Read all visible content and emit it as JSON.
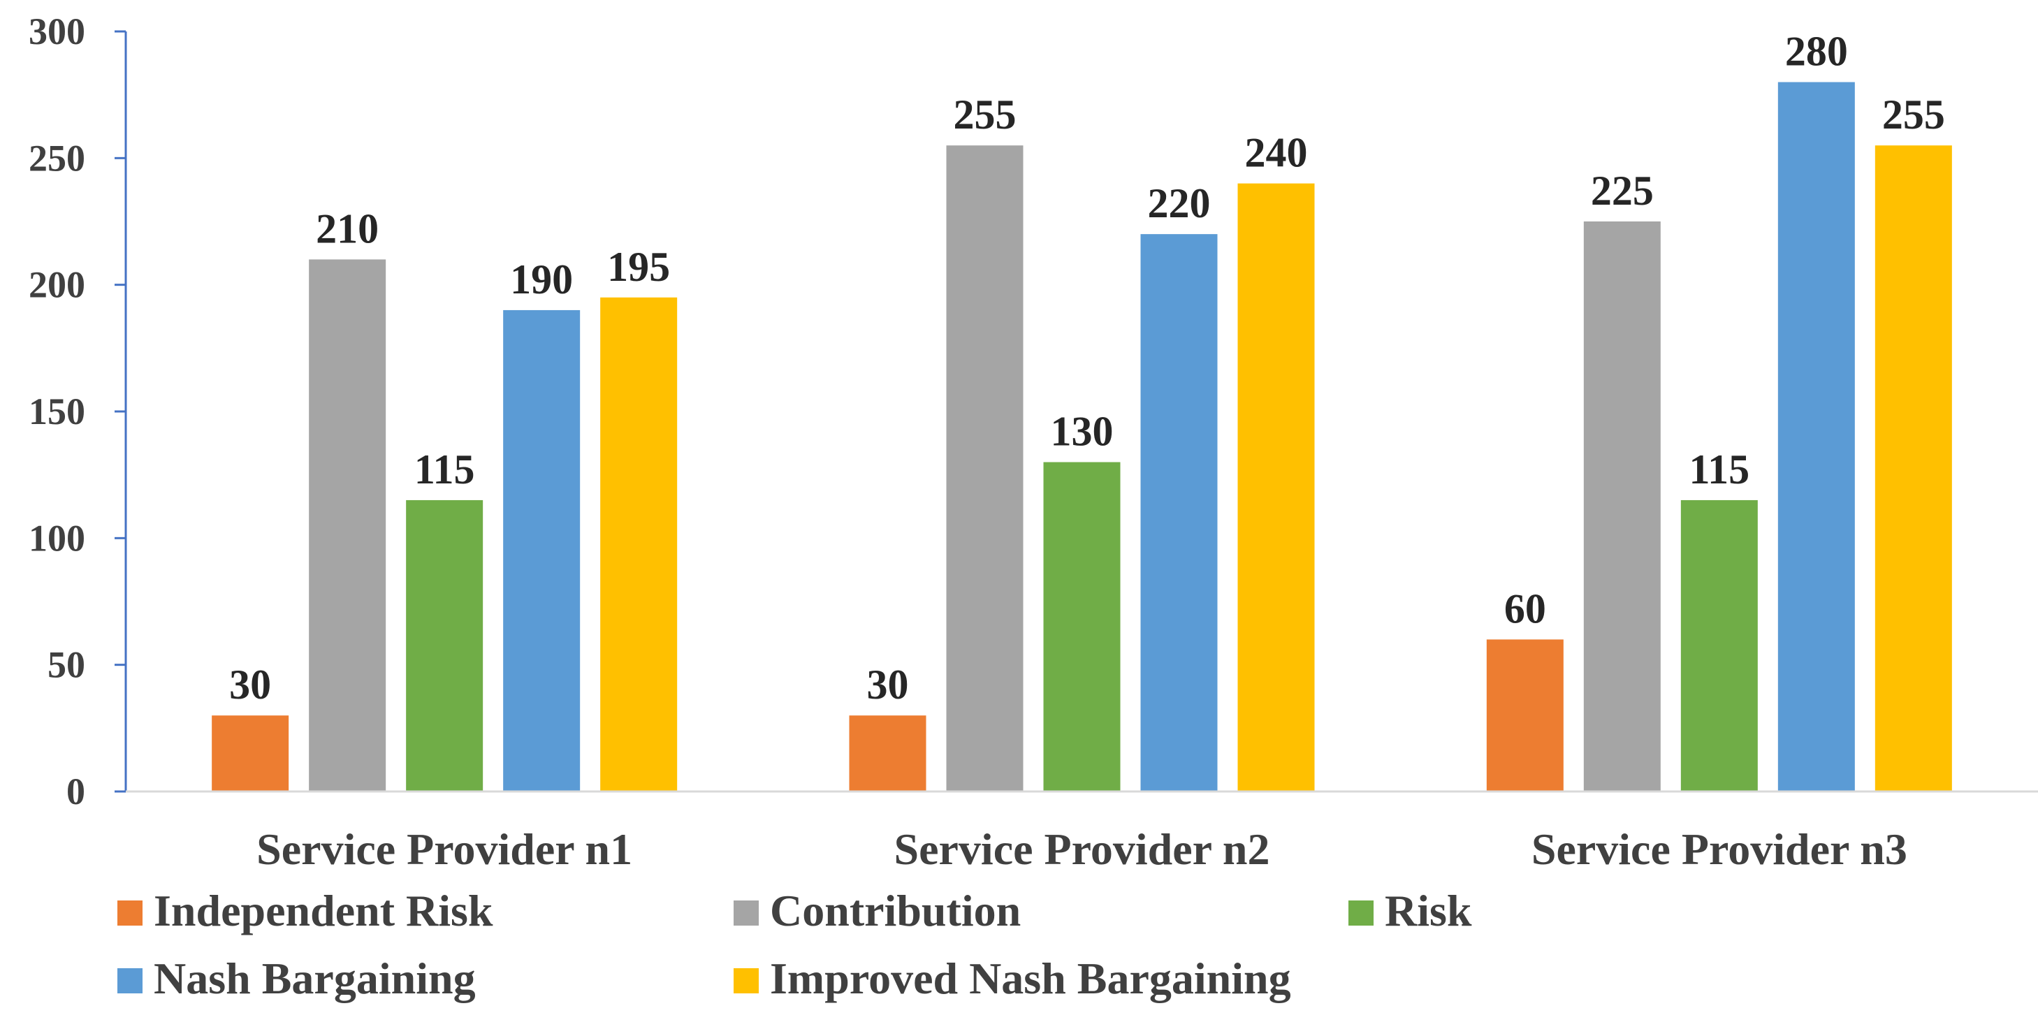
{
  "chart_data": {
    "type": "bar",
    "title": "",
    "xlabel": "",
    "ylabel": "",
    "ylim": [
      0,
      300
    ],
    "yticks": [
      0,
      50,
      100,
      150,
      200,
      250,
      300
    ],
    "grid": false,
    "legend_position": "bottom",
    "categories": [
      "Service Provider n1",
      "Service Provider n2",
      "Service Provider n3"
    ],
    "series": [
      {
        "name": "Independent Risk",
        "color": "#ED7D31",
        "values": [
          30,
          30,
          60
        ]
      },
      {
        "name": "Contribution",
        "color": "#A5A5A5",
        "values": [
          210,
          255,
          225
        ]
      },
      {
        "name": "Risk",
        "color": "#70AD47",
        "values": [
          115,
          130,
          115
        ]
      },
      {
        "name": "Nash Bargaining",
        "color": "#5B9BD5",
        "values": [
          190,
          220,
          280
        ]
      },
      {
        "name": "Improved Nash Bargaining",
        "color": "#FFC000",
        "values": [
          195,
          240,
          255
        ]
      }
    ]
  }
}
